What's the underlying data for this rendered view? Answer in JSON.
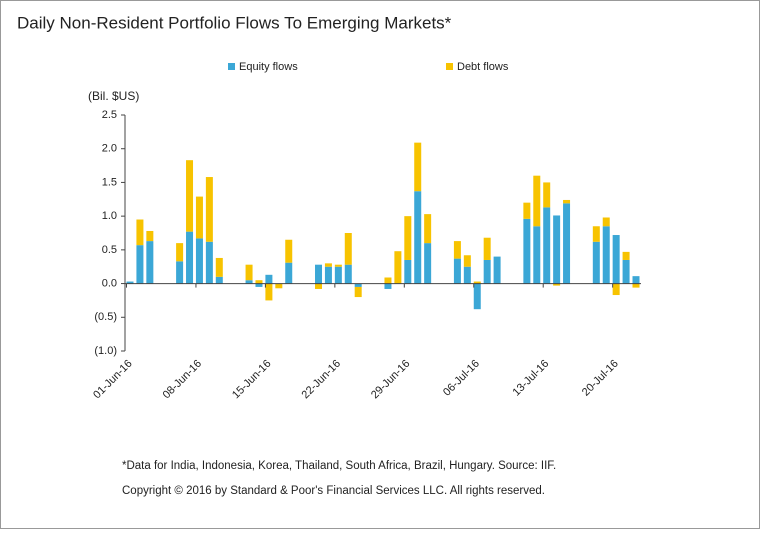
{
  "chart_data": {
    "type": "bar",
    "stacked": true,
    "title": "Daily Non-Resident Portfolio Flows To Emerging Markets*",
    "y_label": "(Bil. $US)",
    "footnote": "*Data  for India, Indonesia, Korea, Thailand,  South Africa, Brazil, Hungary. Source:  IIF.",
    "copyright": "Copyright © 2016 by Standard & Poor's Financial Services LLC. All rights reserved.",
    "categories": [
      "01-Jun-16",
      null,
      null,
      null,
      null,
      null,
      null,
      "08-Jun-16",
      null,
      null,
      null,
      null,
      null,
      null,
      "15-Jun-16",
      null,
      null,
      null,
      null,
      null,
      null,
      "22-Jun-16",
      null,
      null,
      null,
      null,
      null,
      null,
      "29-Jun-16",
      null,
      null,
      null,
      null,
      null,
      null,
      "06-Jul-16",
      null,
      null,
      null,
      null,
      null,
      null,
      "13-Jul-16",
      null,
      null,
      null,
      null,
      null,
      null,
      "20-Jul-16",
      null,
      null
    ],
    "series": [
      {
        "name": "Equity flows",
        "color": "#3ba7d6",
        "values": [
          0.03,
          0.57,
          0.63,
          null,
          null,
          0.33,
          0.77,
          0.67,
          0.62,
          0.1,
          null,
          null,
          0.05,
          -0.05,
          0.13,
          0,
          0.31,
          null,
          null,
          0.28,
          0.25,
          0.25,
          0.28,
          -0.05,
          null,
          null,
          -0.08,
          0,
          0.35,
          1.37,
          0.6,
          null,
          null,
          0.37,
          0.25,
          -0.38,
          0.35,
          0.4,
          null,
          null,
          0.96,
          0.85,
          1.13,
          1.01,
          1.19,
          null,
          null,
          0.62,
          0.85,
          0.72,
          0.35,
          0.11
        ]
      },
      {
        "name": "Debt flows",
        "color": "#f7c300",
        "values": [
          0,
          0.38,
          0.15,
          null,
          null,
          0.27,
          1.06,
          0.62,
          0.96,
          0.28,
          null,
          null,
          0.23,
          0.05,
          -0.25,
          -0.07,
          0.34,
          null,
          null,
          -0.08,
          0.05,
          0.03,
          0.47,
          -0.15,
          null,
          null,
          0.09,
          0.48,
          0.65,
          0.72,
          0.43,
          null,
          null,
          0.26,
          0.17,
          0.03,
          0.33,
          0,
          null,
          null,
          0.24,
          0.75,
          0.37,
          -0.03,
          0.05,
          null,
          null,
          0.23,
          0.13,
          -0.17,
          0.12,
          -0.06
        ]
      }
    ],
    "ylim": [
      -1.0,
      2.5
    ],
    "yticks": [
      {
        "value": -1.0,
        "label": "(1.0)"
      },
      {
        "value": -0.5,
        "label": "(0.5)"
      },
      {
        "value": 0,
        "label": "0.0"
      },
      0.5,
      {
        "value": 1.0,
        "label": "1.0"
      },
      1.5,
      {
        "value": 2.0,
        "label": "2.0"
      },
      2.5
    ],
    "legend": "top"
  }
}
